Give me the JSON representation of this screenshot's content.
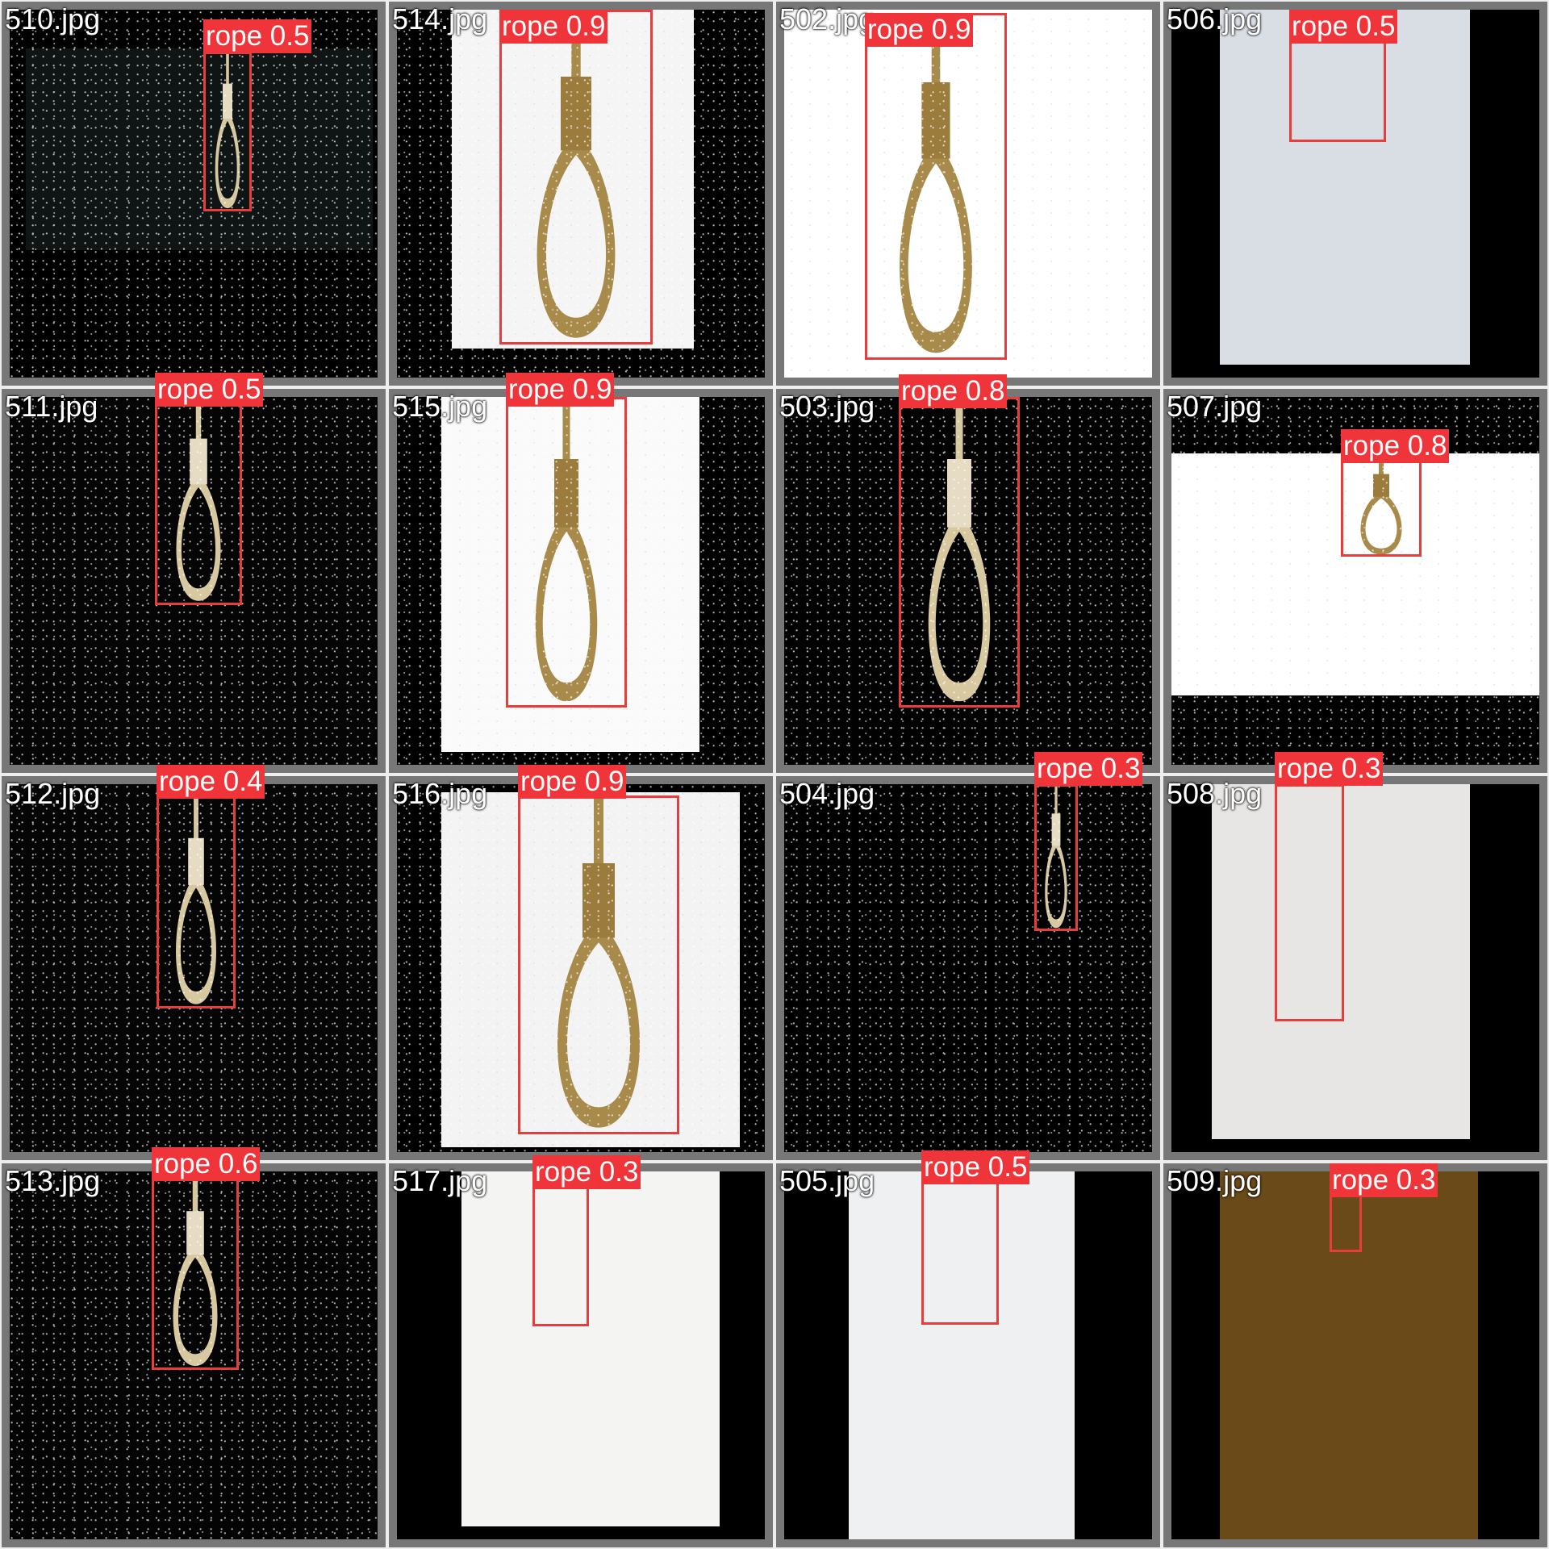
{
  "tiles": [
    {
      "filename": "510.jpg",
      "label": "rope 0.5",
      "scene": "dark"
    },
    {
      "filename": "514.jpg",
      "label": "rope 0.9",
      "scene": "white"
    },
    {
      "filename": "502.jpg",
      "label": "rope 0.9",
      "scene": "white"
    },
    {
      "filename": "506.jpg",
      "label": "rope 0.5",
      "scene": "photo"
    },
    {
      "filename": "511.jpg",
      "label": "rope 0.5",
      "scene": "dark"
    },
    {
      "filename": "515.jpg",
      "label": "rope 0.9",
      "scene": "white"
    },
    {
      "filename": "503.jpg",
      "label": "rope 0.8",
      "scene": "dark"
    },
    {
      "filename": "507.jpg",
      "label": "rope 0.8",
      "scene": "white"
    },
    {
      "filename": "512.jpg",
      "label": "rope 0.4",
      "scene": "dark"
    },
    {
      "filename": "516.jpg",
      "label": "rope 0.9",
      "scene": "white"
    },
    {
      "filename": "504.jpg",
      "label": "rope 0.3",
      "scene": "dark"
    },
    {
      "filename": "508.jpg",
      "label": "rope 0.3",
      "scene": "photo"
    },
    {
      "filename": "513.jpg",
      "label": "rope 0.6",
      "scene": "dark"
    },
    {
      "filename": "517.jpg",
      "label": "rope 0.3",
      "scene": "photo"
    },
    {
      "filename": "505.jpg",
      "label": "rope 0.5",
      "scene": "photo"
    },
    {
      "filename": "509.jpg",
      "label": "rope 0.3",
      "scene": "warm"
    }
  ],
  "colors": {
    "box": "#e83d3d",
    "label_bg": "#f0353a",
    "label_text": "#ffffff"
  }
}
